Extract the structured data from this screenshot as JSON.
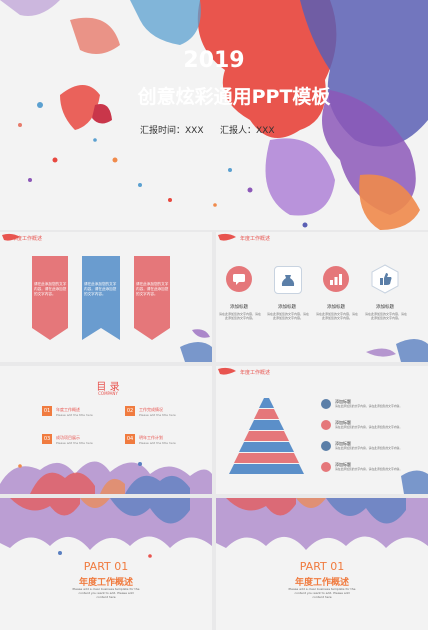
{
  "cover": {
    "year": "2019",
    "title": "创意炫彩通用PPT模板",
    "report_time": "汇报时间：XXX",
    "reporter": "汇报人：XXX"
  },
  "section_label": "年度工作概述",
  "slide2": {
    "columns": [
      {
        "text": "请在此添加您的文字内容，请在此添加您的文字内容。",
        "color": "#e5777a"
      },
      {
        "text": "请在此添加您的文字内容，请在此添加您的文字内容。",
        "color": "#6a9ccf"
      },
      {
        "text": "请在此添加您的文字内容，请在此添加您的文字内容。",
        "color": "#e5777a"
      }
    ]
  },
  "slide3": {
    "items": [
      {
        "icon": "chat-icon",
        "title": "添加标题",
        "desc": "请在此添加您的文字内容，请在此添加您的文字内容。",
        "color": "#e5777a"
      },
      {
        "icon": "money-bag-icon",
        "title": "添加标题",
        "desc": "请在此添加您的文字内容，请在此添加您的文字内容。",
        "color": "#5b7fa8"
      },
      {
        "icon": "bar-chart-icon",
        "title": "添加标题",
        "desc": "请在此添加您的文字内容，请在此添加您的文字内容。",
        "color": "#e5777a"
      },
      {
        "icon": "thumbs-up-icon",
        "title": "添加标题",
        "desc": "请在此添加您的文字内容，请在此添加您的文字内容。",
        "color": "#5b7fa8"
      }
    ]
  },
  "slide4": {
    "title": "目 录",
    "subtitle": "COMPANY",
    "items": [
      {
        "num": "01",
        "title": "年度工作概述",
        "sub": "Please add the title here"
      },
      {
        "num": "02",
        "title": "工作完成情况",
        "sub": "Please add the title here"
      },
      {
        "num": "03",
        "title": "成功项目展示",
        "sub": "Please add the title here"
      },
      {
        "num": "04",
        "title": "明年工作计划",
        "sub": "Please add the title here"
      }
    ]
  },
  "slide5": {
    "items": [
      {
        "title": "添加标题",
        "desc": "请在此添加您的文字内容，请在此添加您的文字内容。",
        "color": "#5b7fa8"
      },
      {
        "title": "添加标题",
        "desc": "请在此添加您的文字内容，请在此添加您的文字内容。",
        "color": "#e5777a"
      },
      {
        "title": "添加标题",
        "desc": "请在此添加您的文字内容，请在此添加您的文字内容。",
        "color": "#5b7fa8"
      },
      {
        "title": "添加标题",
        "desc": "请在此添加您的文字内容，请在此添加您的文字内容。",
        "color": "#e5777a"
      }
    ]
  },
  "part": {
    "label": "PART 01",
    "title": "年度工作概述",
    "desc_line1": "Please add a clear business template for the",
    "desc_line2": "content you want to add. Please add",
    "desc_line3": "content here"
  },
  "colors": {
    "accent": "#e8544f",
    "blue": "#5b7fa8",
    "orange": "#f08a4b",
    "purple": "#7b5bb5"
  }
}
